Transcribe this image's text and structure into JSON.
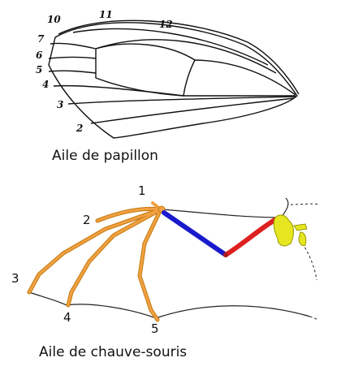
{
  "butterfly": {
    "caption": "Aile de papillon",
    "vein_numbers": [
      "10",
      "11",
      "12",
      "7",
      "6",
      "5",
      "4",
      "3",
      "2"
    ]
  },
  "bat": {
    "caption": "Aile de chauve-souris",
    "digit_numbers": [
      "1",
      "2",
      "3",
      "4",
      "5"
    ]
  },
  "colors": {
    "outline": "#111111",
    "fingers": "#f0a040",
    "finger_edge": "#c47a10",
    "humerus": "#1a1acc",
    "forearm": "#dd2020",
    "shoulder": "#e6e621",
    "skin": "#222222"
  }
}
